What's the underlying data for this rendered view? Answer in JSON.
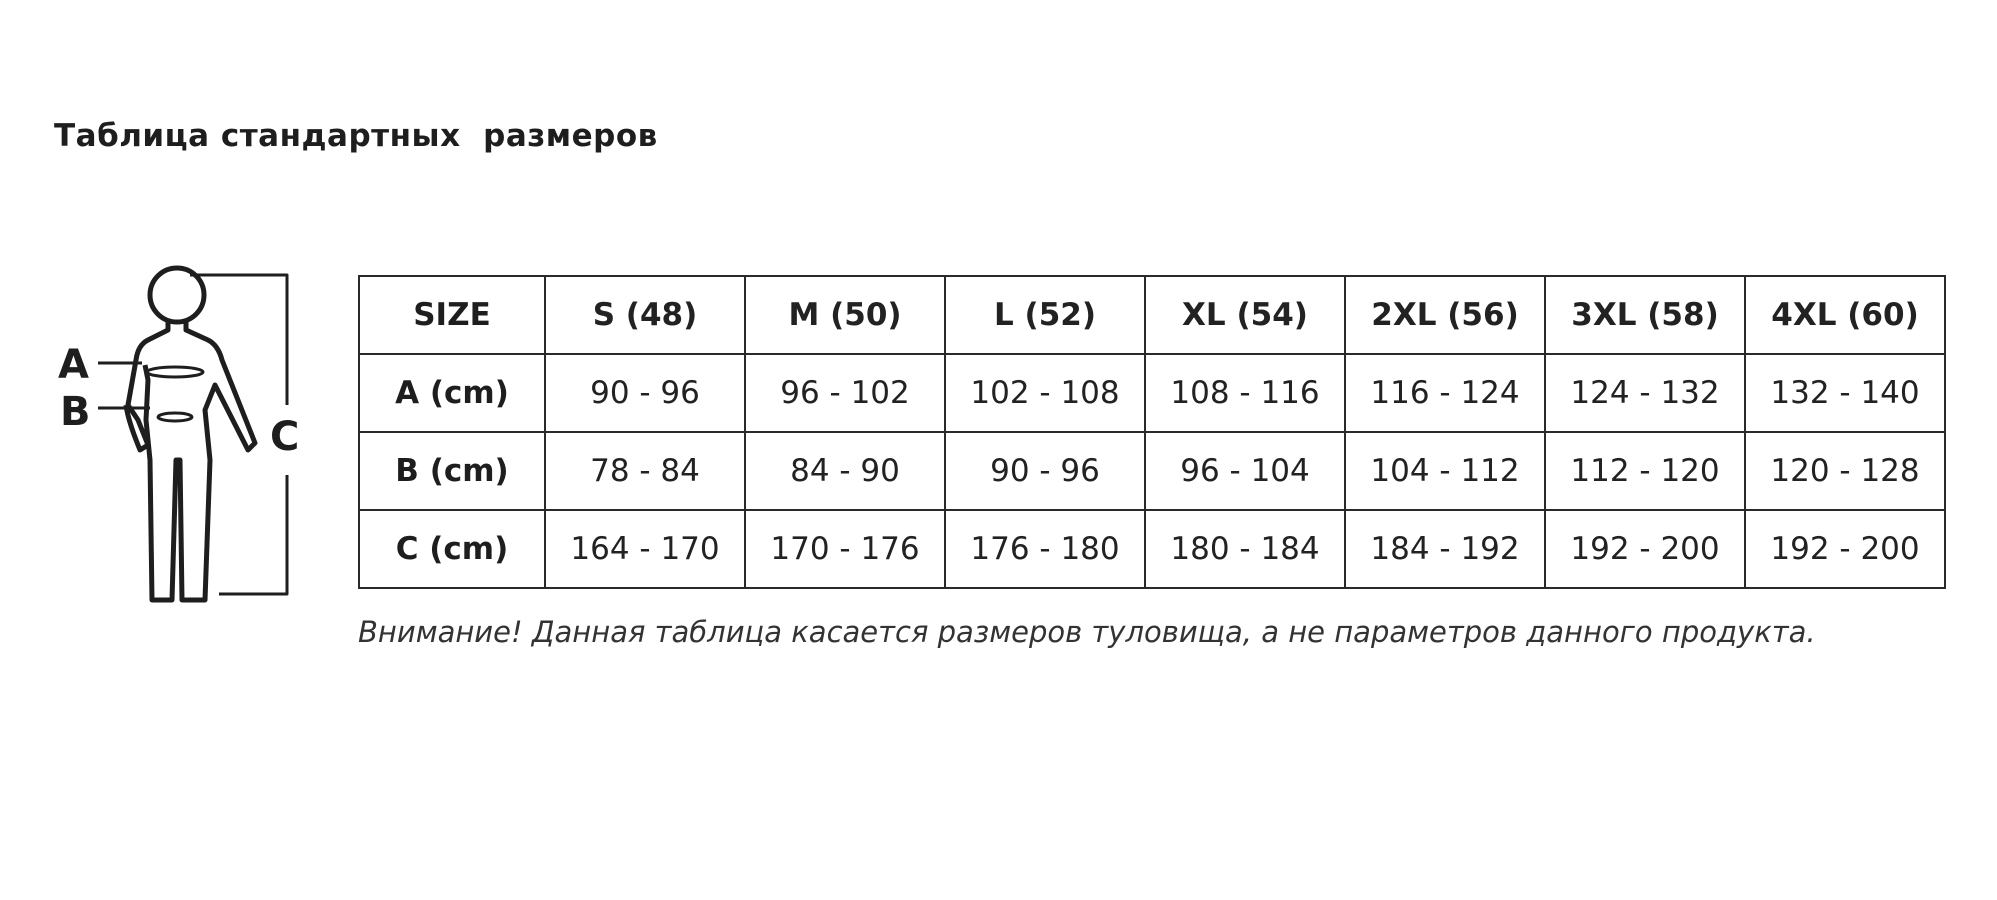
{
  "title": "Таблица стандартных  размеров",
  "figure": {
    "labels": {
      "a": "A",
      "b": "B",
      "c": "C"
    }
  },
  "table": {
    "header": [
      "SIZE",
      "S (48)",
      "M (50)",
      "L (52)",
      "XL (54)",
      "2XL (56)",
      "3XL (58)",
      "4XL (60)"
    ],
    "rows": [
      [
        "A (cm)",
        "90 - 96",
        "96 - 102",
        "102 - 108",
        "108 - 116",
        "116 - 124",
        "124 - 132",
        "132 - 140"
      ],
      [
        "B (cm)",
        "78 - 84",
        "84 - 90",
        "90 - 96",
        "96 - 104",
        "104 - 112",
        "112 - 120",
        "120 - 128"
      ],
      [
        "C (cm)",
        "164 - 170",
        "170 - 176",
        "176 - 180",
        "180 - 184",
        "184 - 192",
        "192 - 200",
        "192 - 200"
      ]
    ]
  },
  "note": "Внимание! Данная таблица касается размеров туловища, а не параметров данного продукта."
}
